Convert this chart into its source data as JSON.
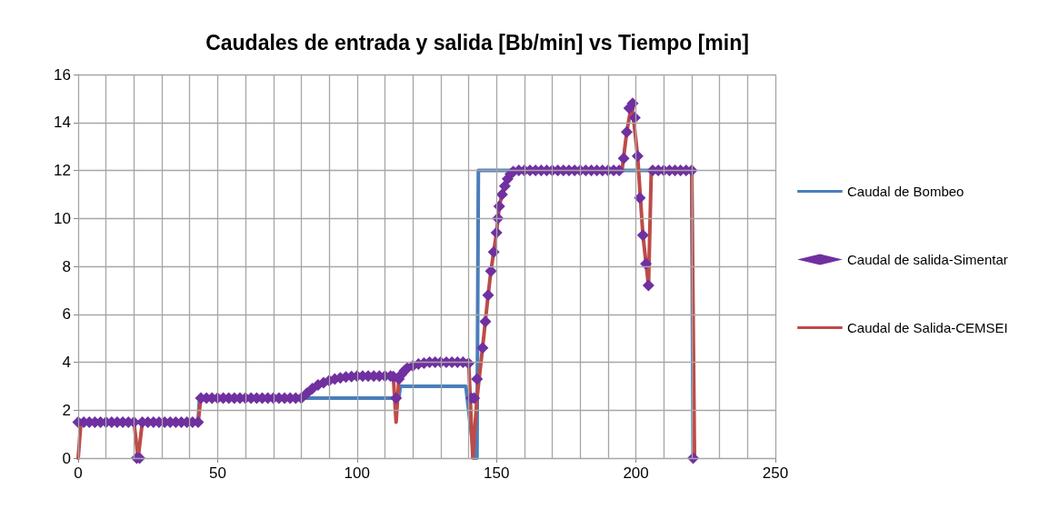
{
  "chart_data": {
    "type": "line",
    "title": "Caudales de entrada y salida [Bb/min] vs Tiempo [min]",
    "xlim": [
      0,
      250
    ],
    "xticks": [
      0,
      {
        "value": 10,
        "label": null
      },
      {
        "value": 20,
        "label": null
      },
      {
        "value": 30,
        "label": null
      },
      {
        "value": 40,
        "label": null
      },
      50,
      {
        "value": 60,
        "label": null
      },
      {
        "value": 70,
        "label": null
      },
      {
        "value": 80,
        "label": null
      },
      {
        "value": 90,
        "label": null
      },
      100,
      {
        "value": 110,
        "label": null
      },
      {
        "value": 120,
        "label": null
      },
      {
        "value": 130,
        "label": null
      },
      {
        "value": 140,
        "label": null
      },
      150,
      {
        "value": 160,
        "label": null
      },
      {
        "value": 170,
        "label": null
      },
      {
        "value": 180,
        "label": null
      },
      {
        "value": 190,
        "label": null
      },
      200,
      {
        "value": 210,
        "label": null
      },
      {
        "value": 220,
        "label": null
      },
      {
        "value": 230,
        "label": null
      },
      {
        "value": 240,
        "label": null
      },
      250
    ],
    "ylim": [
      0,
      16
    ],
    "yticks": [
      0,
      2,
      4,
      6,
      8,
      10,
      12,
      14,
      16
    ],
    "grid": true,
    "legend": "right",
    "line_style": "solid",
    "series": [
      {
        "name": "Caudal de Bombeo",
        "marker": "none",
        "color": "#4a7ebb",
        "x": [
          0,
          43,
          43.5,
          115,
          115.5,
          139,
          142,
          143,
          143.5,
          220,
          220.5
        ],
        "values": [
          1.5,
          1.5,
          2.5,
          2.5,
          3,
          3,
          0,
          0,
          12,
          12,
          0
        ]
      },
      {
        "name": "Caudal de salida-Simentar",
        "type": "scatter",
        "marker": "diamond",
        "color": "#7030a0",
        "x": [
          0,
          2,
          4,
          6,
          8,
          10,
          12,
          14,
          16,
          18,
          20,
          21,
          22,
          23,
          25,
          27,
          29,
          31,
          33,
          35,
          37,
          39,
          41,
          43,
          44,
          46,
          48,
          50,
          52,
          54,
          56,
          58,
          60,
          62,
          64,
          66,
          68,
          70,
          72,
          74,
          76,
          78,
          80,
          82,
          84,
          86,
          88,
          90,
          92,
          94,
          96,
          98,
          100,
          102,
          104,
          106,
          108,
          110,
          112,
          113,
          114,
          115,
          116,
          117,
          118,
          120,
          122,
          124,
          126,
          128,
          130,
          132,
          134,
          136,
          138,
          140,
          141,
          142,
          143,
          145,
          146,
          147,
          148,
          149,
          150,
          150.5,
          151,
          152,
          153,
          154,
          155,
          156,
          158,
          160,
          162,
          164,
          166,
          168,
          170,
          172,
          174,
          176,
          178,
          180,
          182,
          184,
          186,
          188,
          190,
          192,
          194,
          195.6,
          196.7,
          197.6,
          198.8,
          199.6,
          200.6,
          201.4,
          202.5,
          203.6,
          204.5,
          206,
          208,
          210,
          212,
          214,
          216,
          218,
          220,
          220.5
        ],
        "values": [
          1.5,
          1.5,
          1.5,
          1.5,
          1.5,
          1.5,
          1.5,
          1.5,
          1.5,
          1.5,
          1.5,
          0,
          0,
          1.5,
          1.5,
          1.5,
          1.5,
          1.5,
          1.5,
          1.5,
          1.5,
          1.5,
          1.5,
          1.5,
          2.5,
          2.5,
          2.5,
          2.5,
          2.5,
          2.5,
          2.5,
          2.5,
          2.5,
          2.5,
          2.5,
          2.5,
          2.5,
          2.5,
          2.5,
          2.5,
          2.5,
          2.5,
          2.5,
          2.7,
          2.9,
          3.05,
          3.15,
          3.23,
          3.3,
          3.35,
          3.38,
          3.4,
          3.42,
          3.42,
          3.42,
          3.42,
          3.42,
          3.42,
          3.42,
          3.4,
          2.5,
          3.3,
          3.5,
          3.65,
          3.75,
          3.85,
          3.92,
          3.96,
          4,
          4,
          4,
          4,
          4,
          4,
          4,
          3.95,
          2.5,
          2.5,
          3.3,
          4.6,
          5.7,
          6.8,
          7.8,
          8.6,
          9.4,
          10,
          10.5,
          11,
          11.35,
          11.65,
          11.85,
          11.95,
          12,
          12,
          12,
          12,
          12,
          12,
          12,
          12,
          12,
          12,
          12,
          12,
          12,
          12,
          12,
          12,
          12,
          12,
          12,
          12.5,
          13.6,
          14.6,
          14.8,
          14.2,
          12.6,
          10.85,
          9.3,
          8.1,
          7.2,
          12,
          12,
          12,
          12,
          12,
          12,
          12,
          12,
          0
        ]
      },
      {
        "name": "Caudal de Salida-CEMSEI",
        "marker": "none",
        "color": "#be4b48",
        "x": [
          0,
          1,
          20,
          21.5,
          23,
          43,
          44,
          80,
          82,
          84,
          86,
          88,
          90,
          92,
          94,
          96,
          98,
          100,
          113,
          114,
          115,
          116,
          117,
          118,
          120,
          122,
          124,
          126,
          140,
          141.5,
          143,
          145,
          146,
          147,
          148,
          149,
          150,
          151,
          152,
          153,
          154,
          155,
          156,
          158,
          195,
          196.7,
          198.5,
          200.6,
          202.5,
          204.5,
          205.5,
          220,
          221
        ],
        "values": [
          0,
          1.5,
          1.5,
          0,
          1.5,
          1.5,
          2.5,
          2.5,
          2.7,
          2.9,
          3.05,
          3.15,
          3.23,
          3.3,
          3.35,
          3.38,
          3.4,
          3.42,
          3.42,
          1.5,
          3.3,
          3.5,
          3.65,
          3.75,
          3.85,
          3.92,
          3.96,
          4,
          4.05,
          0,
          2.5,
          4.6,
          5.7,
          6.8,
          7.8,
          8.6,
          9.4,
          10.5,
          11,
          11.35,
          11.65,
          11.85,
          11.95,
          12,
          12,
          13.6,
          14.8,
          12.6,
          9.3,
          7.2,
          12,
          12,
          0
        ]
      }
    ]
  }
}
